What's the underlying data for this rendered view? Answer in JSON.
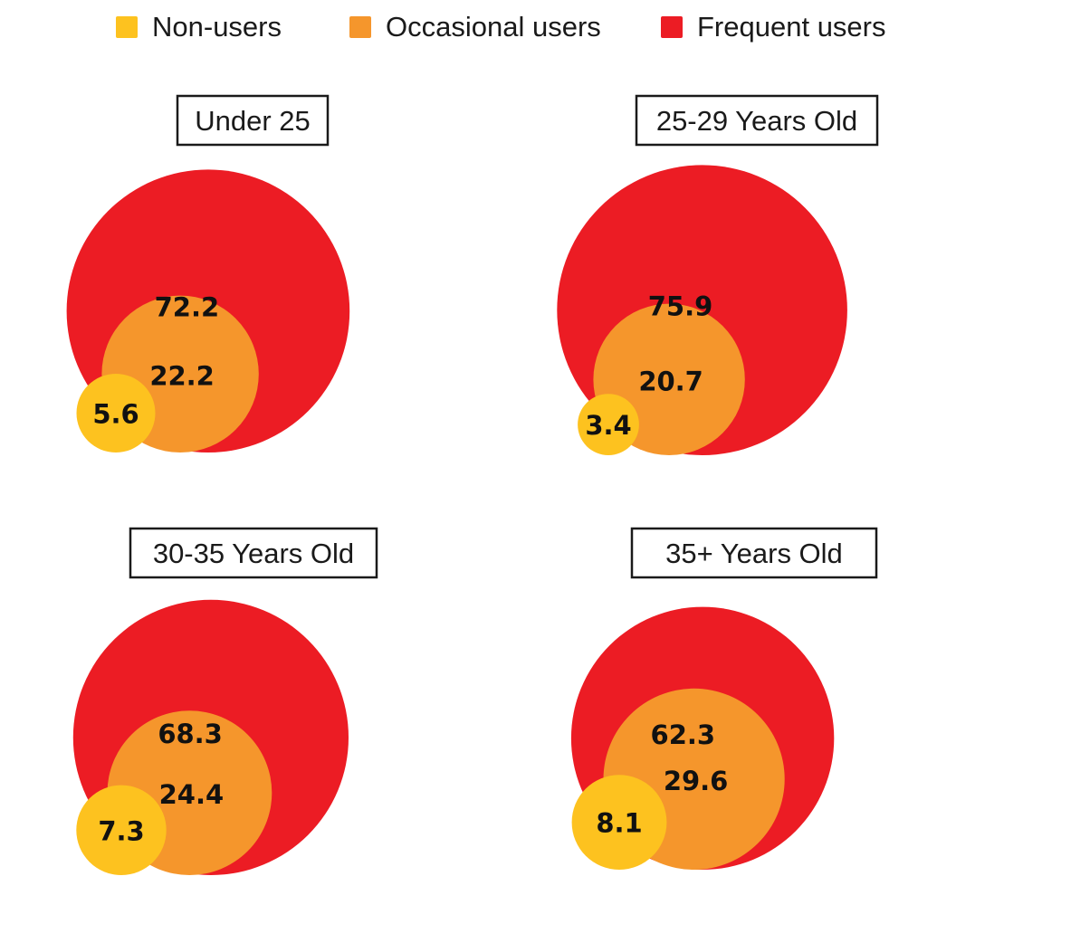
{
  "chart_data": {
    "type": "bubble",
    "legend": {
      "placement": "top",
      "entries": [
        {
          "key": "non",
          "label": "Non-users",
          "color": "#FDC21F"
        },
        {
          "key": "occ",
          "label": "Occasional users",
          "color": "#F5962C"
        },
        {
          "key": "freq",
          "label": "Frequent users",
          "color": "#EC1C24"
        }
      ]
    },
    "panels": [
      {
        "title": "Under 25",
        "values": {
          "non": 5.6,
          "occ": 22.2,
          "freq": 72.2
        },
        "labels": {
          "non": "5.6",
          "occ": "22.2",
          "freq": "72.2"
        }
      },
      {
        "title": "25-29 Years Old",
        "values": {
          "non": 3.4,
          "occ": 20.7,
          "freq": 75.9
        },
        "labels": {
          "non": "3.4",
          "occ": "20.7",
          "freq": "75.9"
        }
      },
      {
        "title": "30-35 Years Old",
        "values": {
          "non": 7.3,
          "occ": 24.4,
          "freq": 68.3
        },
        "labels": {
          "non": "7.3",
          "occ": "24.4",
          "freq": "68.3"
        }
      },
      {
        "title": "35+ Years Old",
        "values": {
          "non": 8.1,
          "occ": 29.6,
          "freq": 62.3
        },
        "labels": {
          "non": "8.1",
          "occ": "29.6",
          "freq": "62.3"
        }
      }
    ]
  }
}
